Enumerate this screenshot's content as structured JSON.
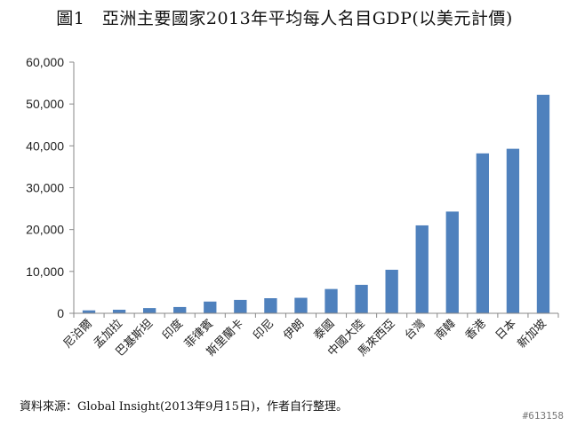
{
  "chart_data": {
    "type": "bar",
    "title": "圖1　亞洲主要國家2013年平均每人名目GDP(以美元計價)",
    "xlabel": "",
    "ylabel": "",
    "ylim": [
      0,
      60000
    ],
    "yticks": [
      "0",
      "10,000",
      "20,000",
      "30,000",
      "40,000",
      "50,000",
      "60,000"
    ],
    "categories": [
      "尼泊爾",
      "孟加拉",
      "巴基斯坦",
      "印度",
      "菲律賓",
      "斯里蘭卡",
      "印尼",
      "伊朗",
      "泰國",
      "中國大陸",
      "馬來西亞",
      "台灣",
      "南韓",
      "香港",
      "日本",
      "新加坡"
    ],
    "values": [
      700,
      850,
      1250,
      1500,
      2800,
      3200,
      3600,
      3700,
      5800,
      6800,
      10400,
      21000,
      24300,
      38200,
      39300,
      52200
    ],
    "bar_color": "#4f81bd",
    "grid": false,
    "source": "資料來源：Global Insight(2013年9月15日)，作者自行整理。"
  },
  "watermark": "#613158"
}
